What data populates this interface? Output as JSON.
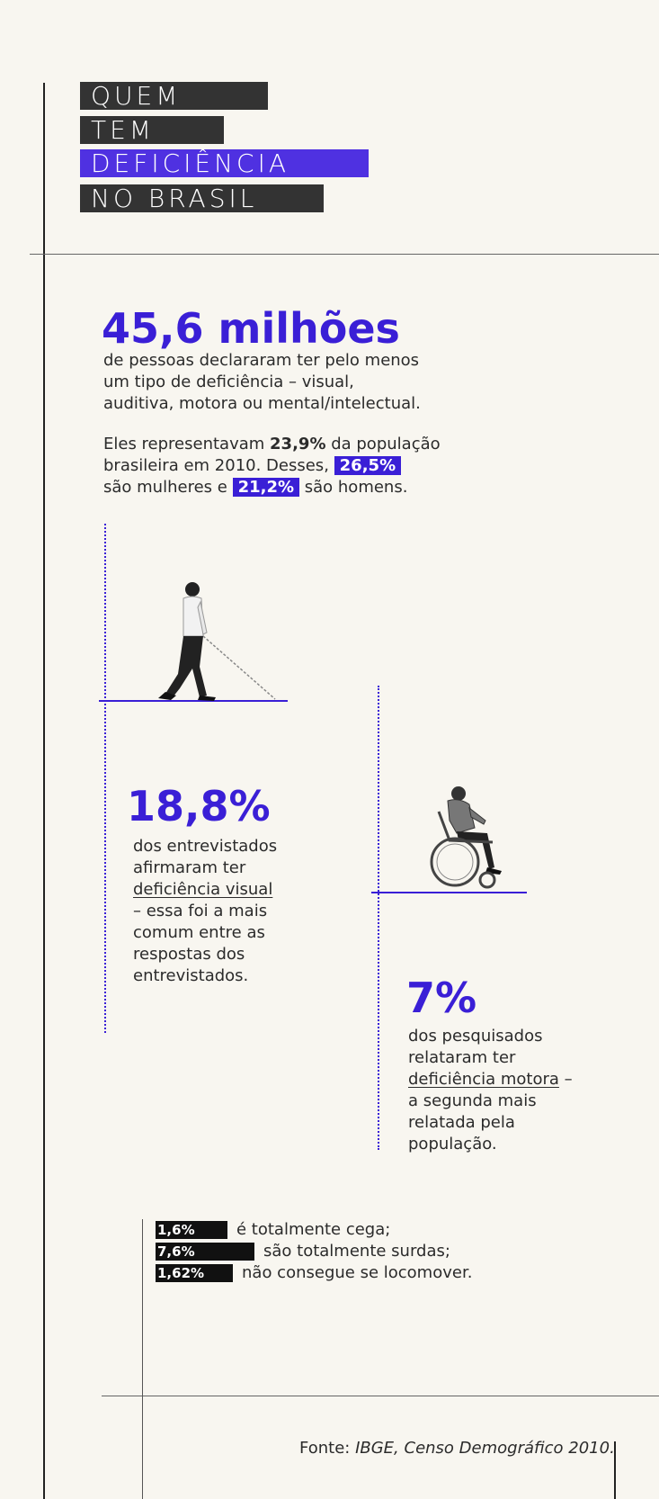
{
  "title": {
    "line1": "QUEM",
    "line2": "TEM",
    "line3": "DEFICIÊNCIA",
    "line4": "NO BRASIL"
  },
  "intro": {
    "big_number": "45,6 milhões",
    "text": "de pessoas declararam ter pelo menos um tipo de deficiência – visual, auditiva, motora ou mental/intelectual.",
    "p2_a": "Eles representavam ",
    "p2_bold": "23,9%",
    "p2_b": " da população brasileira em 2010. Desses,",
    "women_pct": "26,5%",
    "p2_c": "são mulheres e",
    "men_pct": "21,2%",
    "p2_d": "são homens."
  },
  "visual": {
    "pct": "18,8%",
    "text_a": "dos entrevistados afirmaram ter",
    "link": "deficiência visual",
    "text_b": "– essa foi a mais comum entre as respostas dos entrevistados."
  },
  "motor": {
    "pct": "7%",
    "text_a": "dos pesquisados relataram ter",
    "link": "deficiência motora",
    "text_b": "– a segunda mais relatada pela população."
  },
  "stats": [
    {
      "pct": "1,6%",
      "text": "é totalmente cega;"
    },
    {
      "pct": "7,6%",
      "text": "são totalmente surdas;"
    },
    {
      "pct": "1,62%",
      "text": "não consegue se locomover."
    }
  ],
  "source": {
    "label": "Fonte:",
    "value": "IBGE, Censo Demográfico 2010."
  },
  "colors": {
    "accent": "#3a1fd6",
    "dark": "#333333",
    "background": "#f8f6f0"
  }
}
